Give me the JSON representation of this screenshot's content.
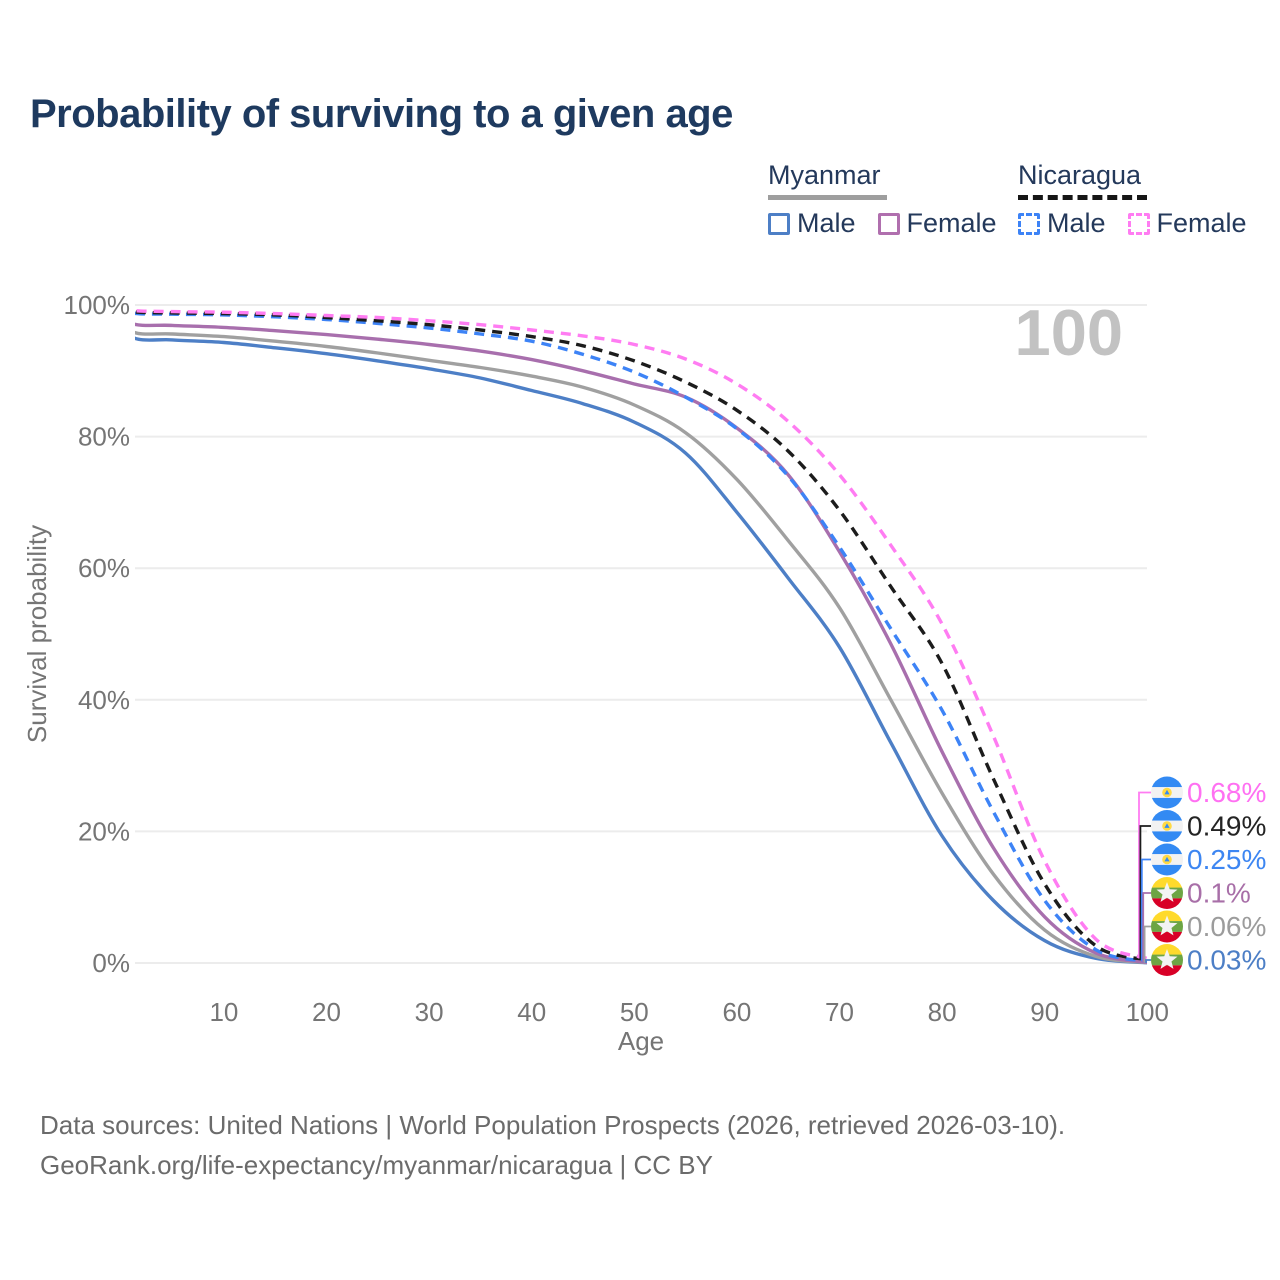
{
  "title": "Probability of surviving to a given age",
  "watermark": "100",
  "legend": {
    "groups": [
      {
        "name": "Myanmar",
        "line_style": "solid",
        "underline_color": "#9e9e9e",
        "items": [
          {
            "label": "Male",
            "color": "#4d7fc6",
            "dash": false
          },
          {
            "label": "Female",
            "color": "#b06fae",
            "dash": false
          }
        ]
      },
      {
        "name": "Nicaragua",
        "line_style": "dashed",
        "underline_color": "#161616",
        "items": [
          {
            "label": "Male",
            "color": "#3d83f6",
            "dash": true
          },
          {
            "label": "Female",
            "color": "#ff7cf2",
            "dash": true
          }
        ]
      }
    ]
  },
  "chart_data": {
    "type": "line",
    "title": "Probability of surviving to a given age",
    "xlabel": "Age",
    "ylabel": "Survival probability",
    "xlim": [
      0,
      105
    ],
    "ylim": [
      0,
      100
    ],
    "grid": "horizontal",
    "legend_position": "top-right",
    "x_ticks": [
      10,
      20,
      30,
      40,
      50,
      60,
      70,
      80,
      90,
      100
    ],
    "y_ticks": [
      0,
      20,
      40,
      60,
      80,
      100
    ],
    "y_tick_suffix": "%",
    "x": [
      0,
      1,
      5,
      10,
      15,
      20,
      25,
      30,
      35,
      40,
      45,
      50,
      55,
      60,
      65,
      70,
      75,
      80,
      85,
      90,
      95,
      100
    ],
    "series": [
      {
        "name": "Myanmar Male",
        "country": "Myanmar",
        "sex": "Male",
        "color": "#4d7fc6",
        "dash": false,
        "flag": "myanmar-flag-icon",
        "end_label": "0.03%",
        "end_label_color": "#4d7fc6",
        "label_rank": 5,
        "values": [
          100,
          95.2,
          94.7,
          94.3,
          93.5,
          92.6,
          91.5,
          90.3,
          88.9,
          87.0,
          85.0,
          82.2,
          77.5,
          68.5,
          58.5,
          48.0,
          33.5,
          19.3,
          9.5,
          3.4,
          0.7,
          0.03
        ]
      },
      {
        "name": "Myanmar Both sexes",
        "country": "Myanmar",
        "sex": "Both",
        "color": "#a0a0a0",
        "dash": false,
        "flag": "myanmar-flag-icon",
        "end_label": "0.06%",
        "end_label_color": "#9c9c9c",
        "label_rank": 4,
        "values": [
          100,
          96.0,
          95.6,
          95.2,
          94.5,
          93.7,
          92.7,
          91.6,
          90.5,
          89.2,
          87.5,
          84.8,
          80.6,
          73.5,
          64.2,
          54.0,
          40.0,
          25.8,
          13.5,
          5.0,
          1.0,
          0.06
        ]
      },
      {
        "name": "Myanmar Female",
        "country": "Myanmar",
        "sex": "Female",
        "color": "#a86fad",
        "dash": false,
        "flag": "myanmar-flag-icon",
        "end_label": "0.1%",
        "end_label_color": "#a86fa8",
        "label_rank": 3,
        "values": [
          100,
          97.2,
          96.9,
          96.6,
          96.1,
          95.5,
          94.8,
          94.0,
          93.0,
          91.7,
          90.0,
          88.0,
          86.0,
          81.3,
          74.2,
          62.5,
          48.5,
          32.1,
          17.5,
          7.0,
          1.5,
          0.1
        ]
      },
      {
        "name": "Nicaragua Male",
        "country": "Nicaragua",
        "sex": "Male",
        "color": "#3d83f6",
        "dash": true,
        "flag": "nicaragua-flag-icon",
        "end_label": "0.25%",
        "end_label_color": "#3d86f2",
        "label_rank": 2,
        "values": [
          100,
          98.8,
          98.6,
          98.5,
          98.2,
          97.8,
          97.2,
          96.5,
          95.6,
          94.5,
          92.5,
          89.8,
          86.0,
          81.2,
          74.0,
          63.2,
          50.8,
          38.4,
          23.0,
          9.5,
          2.0,
          0.25
        ]
      },
      {
        "name": "Nicaragua Both sexes",
        "country": "Nicaragua",
        "sex": "Both",
        "color": "#1c1c1c",
        "dash": true,
        "flag": "nicaragua-flag-icon",
        "end_label": "0.49%",
        "end_label_color": "#242424",
        "label_rank": 1,
        "values": [
          100,
          99.0,
          98.8,
          98.7,
          98.5,
          98.1,
          97.6,
          97.0,
          96.2,
          95.2,
          93.8,
          91.5,
          88.3,
          84.0,
          77.8,
          68.8,
          57.2,
          45.5,
          28.0,
          12.0,
          2.6,
          0.49
        ]
      },
      {
        "name": "Nicaragua Female",
        "country": "Nicaragua",
        "sex": "Female",
        "color": "#ff7cf2",
        "dash": true,
        "flag": "nicaragua-flag-icon",
        "end_label": "0.68%",
        "end_label_color": "#ff70f2",
        "label_rank": 0,
        "values": [
          100,
          99.2,
          99.0,
          98.9,
          98.7,
          98.4,
          98.1,
          97.6,
          97.0,
          96.2,
          95.3,
          94.0,
          91.8,
          88.0,
          82.3,
          74.2,
          63.5,
          51.5,
          34.5,
          15.5,
          3.6,
          0.68
        ]
      }
    ],
    "flag_colors": {
      "myanmar": {
        "top": "#ffda2c",
        "middle": "#6da544",
        "bottom": "#d80027",
        "star": "#f3f3f3"
      },
      "nicaragua": {
        "top": "#338af3",
        "middle": "#f2f2f2",
        "bottom": "#338af3",
        "emblem": "#ffda44",
        "emblem_triangle": "#338af3"
      }
    }
  },
  "footer": {
    "line1": "Data sources: United Nations | World Population Prospects (2026, retrieved 2026-03-10).",
    "line2": "GeoRank.org/life-expectancy/myanmar/nicaragua | CC BY"
  },
  "style_colors": {
    "title": "#1e3a5f",
    "axis_text": "#757575",
    "gridline": "#ececec",
    "watermark": "#c2c2c2",
    "footer_text": "#6b6b6b"
  }
}
